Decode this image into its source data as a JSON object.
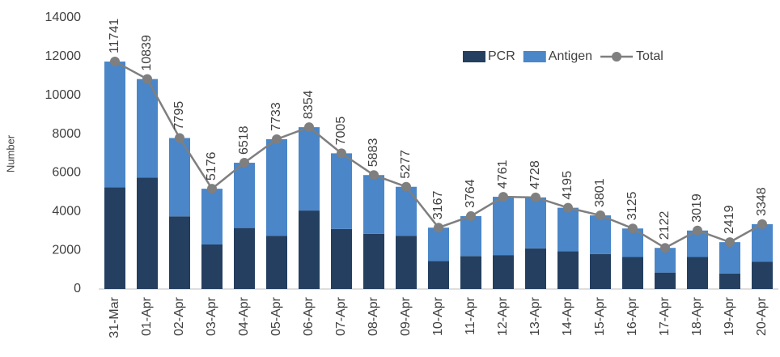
{
  "chart_data": {
    "type": "stacked-bar-line",
    "y_label": "Number",
    "categories": [
      "31-Mar",
      "01-Apr",
      "02-Apr",
      "03-Apr",
      "04-Apr",
      "05-Apr",
      "06-Apr",
      "07-Apr",
      "08-Apr",
      "09-Apr",
      "10-Apr",
      "11-Apr",
      "12-Apr",
      "13-Apr",
      "14-Apr",
      "15-Apr",
      "16-Apr",
      "17-Apr",
      "18-Apr",
      "19-Apr",
      "20-Apr"
    ],
    "series": [
      {
        "name": "PCR",
        "kind": "bar",
        "color": "#243f60",
        "values": [
          5250,
          5750,
          3750,
          2300,
          3150,
          2750,
          4050,
          3100,
          2850,
          2750,
          1450,
          1700,
          1750,
          2100,
          1950,
          1800,
          1650,
          850,
          1650,
          800,
          1400
        ]
      },
      {
        "name": "Antigen",
        "kind": "bar",
        "color": "#4a86c8",
        "values": [
          6491,
          5089,
          4045,
          2876,
          3368,
          4983,
          4304,
          3905,
          3033,
          2527,
          1717,
          2064,
          3011,
          2628,
          2245,
          2001,
          1475,
          1272,
          1369,
          1619,
          1948
        ]
      },
      {
        "name": "Total",
        "kind": "line",
        "color": "#7f7f7f",
        "values": [
          11741,
          10839,
          7795,
          5176,
          6518,
          7733,
          8354,
          7005,
          5883,
          5277,
          3167,
          3764,
          4761,
          4728,
          4195,
          3801,
          3125,
          2122,
          3019,
          2419,
          3348
        ]
      }
    ],
    "ylim": [
      0,
      14000
    ],
    "yticks": [
      0,
      2000,
      4000,
      6000,
      8000,
      10000,
      12000,
      14000
    ],
    "grid": false,
    "legend": "top-right"
  }
}
